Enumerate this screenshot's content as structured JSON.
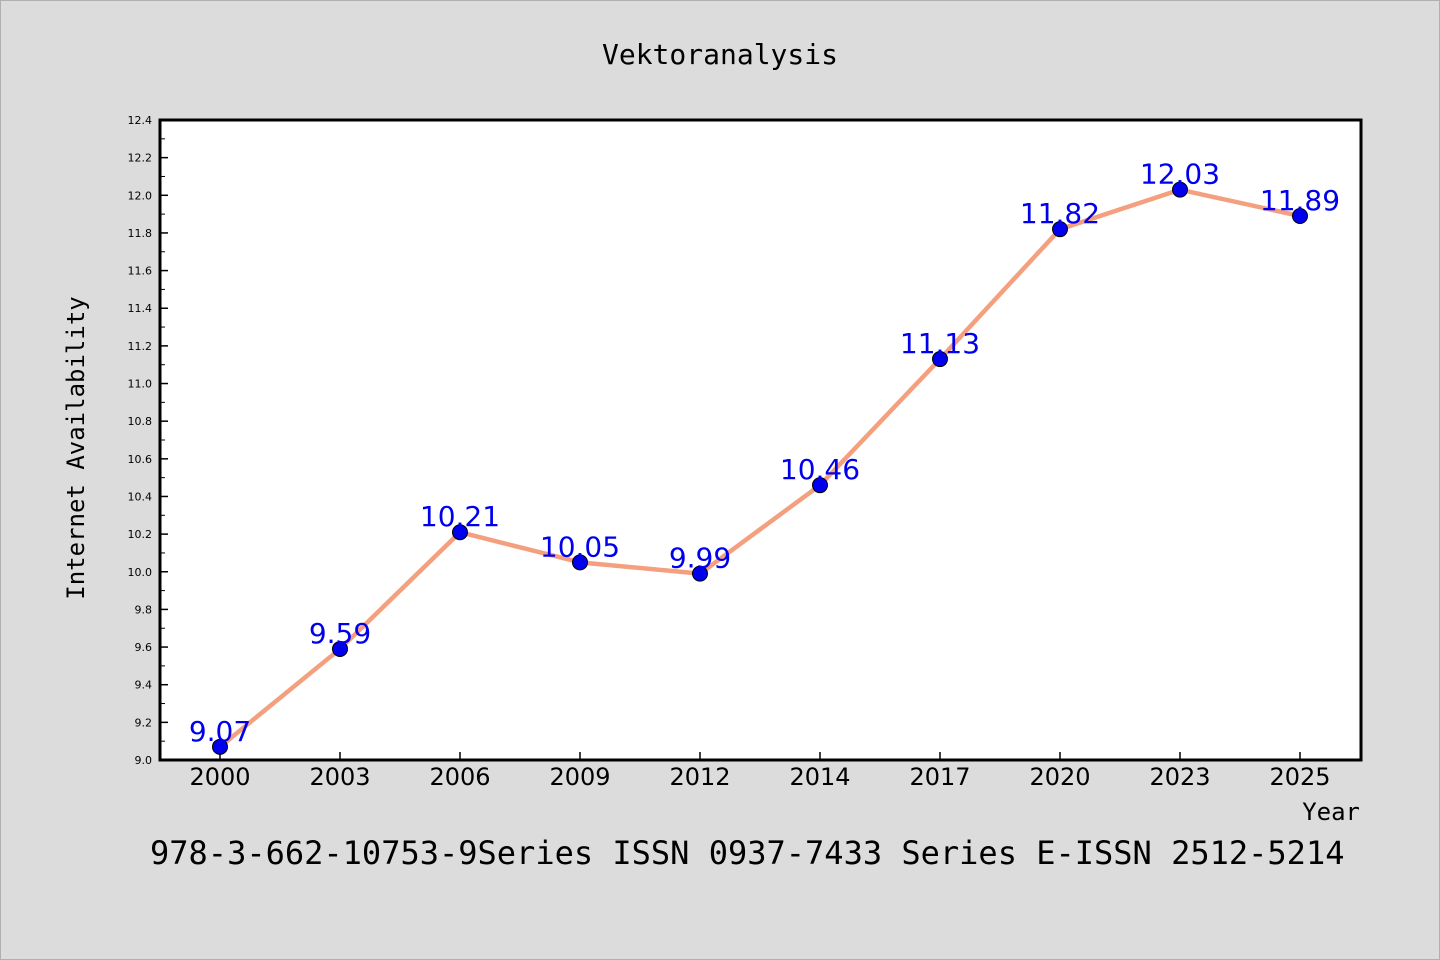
{
  "chart_data": {
    "type": "line",
    "title": "Vektoranalysis",
    "xlabel": "Year",
    "ylabel": "Internet Availability",
    "categories": [
      "2000",
      "2003",
      "2006",
      "2009",
      "2012",
      "2014",
      "2017",
      "2020",
      "2023",
      "2025"
    ],
    "series": [
      {
        "values": [
          9.07,
          9.59,
          10.21,
          10.05,
          9.99,
          10.46,
          11.13,
          11.82,
          12.03,
          11.89
        ],
        "data_labels": [
          "9.07",
          "9.59",
          "10.21",
          "10.05",
          "9.99",
          "10.46",
          "11.13",
          "11.82",
          "12.03",
          "11.89"
        ]
      }
    ],
    "ylim": [
      9.0,
      12.4
    ],
    "yticks": [
      "9.0",
      "9.2",
      "9.4",
      "9.6",
      "9.8",
      "10.0",
      "10.2",
      "10.4",
      "10.6",
      "10.8",
      "11.0",
      "11.2",
      "11.4",
      "11.6",
      "11.8",
      "12.0",
      "12.2",
      "12.4"
    ],
    "grid": false,
    "line_color": "#f4a07f",
    "marker_color": "#0000ee",
    "label_color": "#0000ee",
    "footer": "978-3-662-10753-9Series ISSN 0937-7433 Series E-ISSN 2512-5214"
  }
}
